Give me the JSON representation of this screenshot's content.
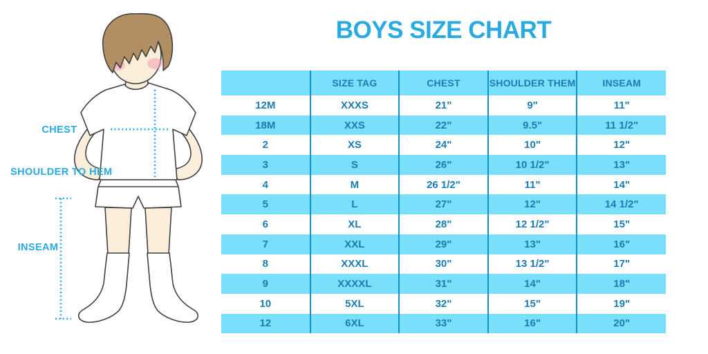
{
  "title": "BOYS SIZE CHART",
  "figure": {
    "labels": {
      "chest": "CHEST",
      "shoulder_to_hem": "SHOULDER TO HEM",
      "inseam": "INSEAM"
    }
  },
  "colors": {
    "accent_blue": "#29ABE2",
    "row_cyan": "#79DFFA",
    "divider_blue": "#1590C5",
    "table_text_blue": "#1B7CB2",
    "hair_brown": "#B28F62",
    "skin": "#FBEEDA",
    "blush_pink": "#F2A0B5"
  },
  "chart_data": {
    "type": "table",
    "title": "BOYS SIZE CHART",
    "columns": [
      "",
      "SIZE TAG",
      "CHEST",
      "SHOULDER THEM",
      "INSEAM"
    ],
    "rows": [
      [
        "12M",
        "XXXS",
        "21\"",
        "9\"",
        "11\""
      ],
      [
        "18M",
        "XXS",
        "22\"",
        "9.5\"",
        "11 1/2\""
      ],
      [
        "2",
        "XS",
        "24\"",
        "10\"",
        "12\""
      ],
      [
        "3",
        "S",
        "26\"",
        "10 1/2\"",
        "13\""
      ],
      [
        "4",
        "M",
        "26 1/2\"",
        "11\"",
        "14\""
      ],
      [
        "5",
        "L",
        "27\"",
        "12\"",
        "14 1/2\""
      ],
      [
        "6",
        "XL",
        "28\"",
        "12 1/2\"",
        "15\""
      ],
      [
        "7",
        "XXL",
        "29\"",
        "13\"",
        "16\""
      ],
      [
        "8",
        "XXXL",
        "30\"",
        "13 1/2\"",
        "17\""
      ],
      [
        "9",
        "XXXXL",
        "31\"",
        "14\"",
        "18\""
      ],
      [
        "10",
        "5XL",
        "32\"",
        "15\"",
        "19\""
      ],
      [
        "12",
        "6XL",
        "33\"",
        "16\"",
        "20\""
      ]
    ]
  }
}
